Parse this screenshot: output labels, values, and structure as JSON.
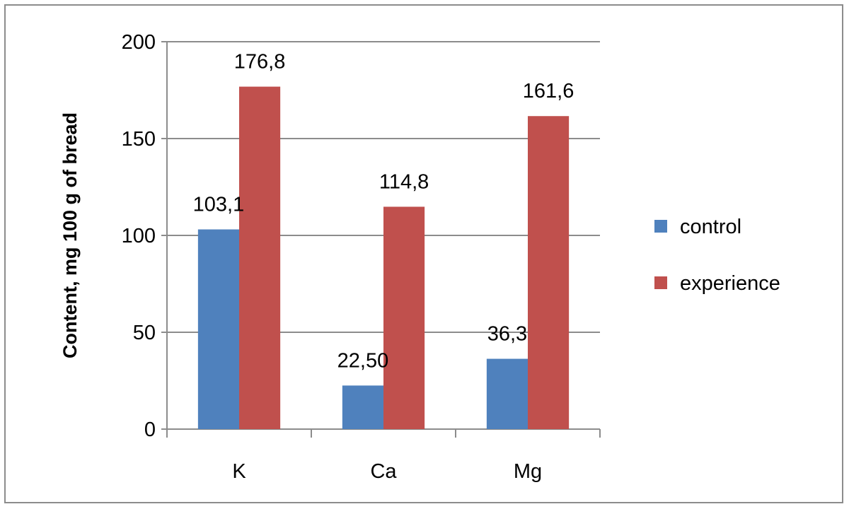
{
  "chart_data": {
    "type": "bar",
    "title": "",
    "xlabel": "",
    "ylabel": "Content, mg 100 g of bread",
    "categories": [
      "K",
      "Ca",
      "Mg"
    ],
    "series": [
      {
        "name": "control",
        "color": "#4f81bd",
        "values": [
          103.1,
          22.5,
          36.3
        ],
        "labels": [
          "103,1",
          "22,50",
          "36,3"
        ]
      },
      {
        "name": "experience",
        "color": "#c0504d",
        "values": [
          176.8,
          114.8,
          161.6
        ],
        "labels": [
          "176,8",
          "114,8",
          "161,6"
        ]
      }
    ],
    "ylim": [
      0,
      200
    ],
    "yticks": [
      0,
      50,
      100,
      150,
      200
    ],
    "grid": true,
    "legend_position": "right"
  }
}
